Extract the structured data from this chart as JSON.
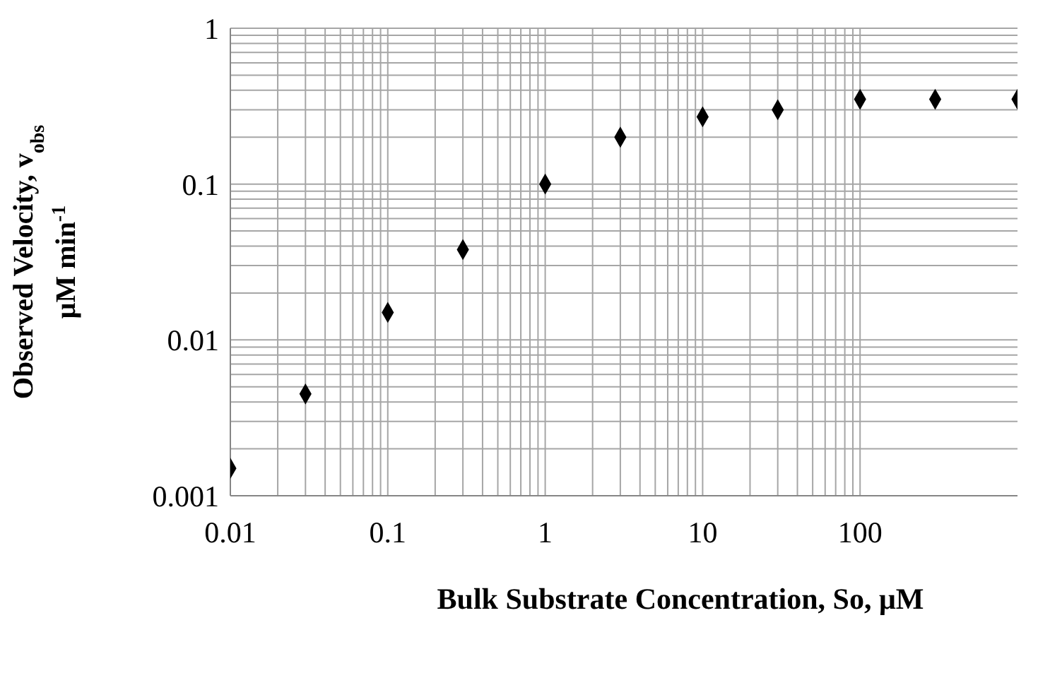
{
  "chart_data": {
    "type": "scatter",
    "xlabel": "Bulk Substrate Concentration, So, μM",
    "ylabel": "Observed Velocity, v$_{obs}$ μM min$^{-1}$",
    "x": [
      0.01,
      0.03,
      0.1,
      0.3,
      1,
      3,
      10,
      30,
      100,
      300,
      1000
    ],
    "series": [
      {
        "color": "#000000",
        "values": [
          0.0015,
          0.0045,
          0.015,
          0.038,
          0.1,
          0.2,
          0.27,
          0.3,
          0.35,
          0.35,
          0.35
        ]
      }
    ],
    "log": "xy",
    "xlim": [
      0.01,
      1000
    ],
    "ylim": [
      0.001,
      1
    ],
    "xticks": [
      0.01,
      0.1,
      1,
      10,
      100
    ],
    "yticks": [
      0.001,
      0.01,
      0.1,
      1
    ],
    "grid": true,
    "marker": "diamond"
  }
}
